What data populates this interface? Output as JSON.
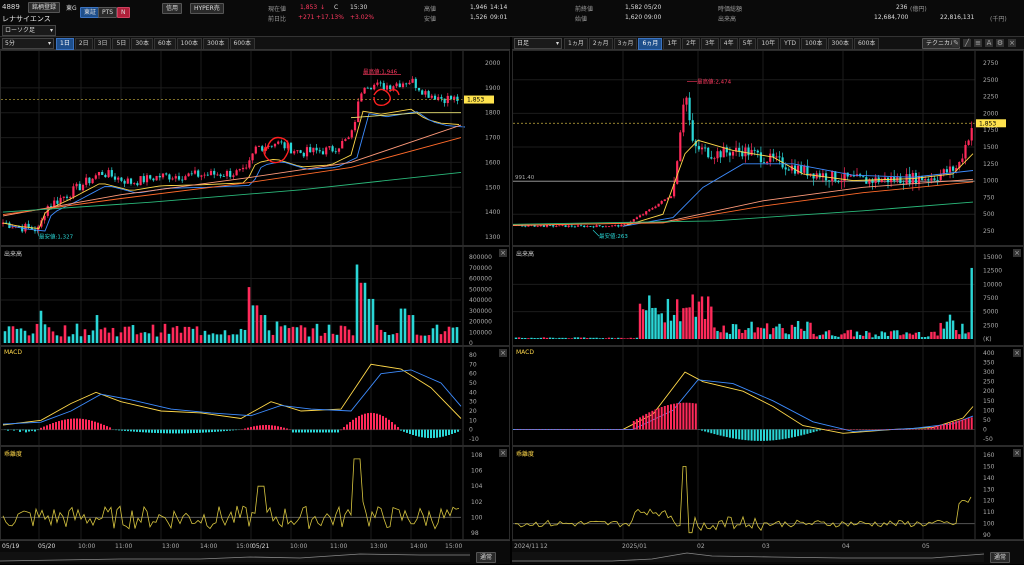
{
  "header": {
    "code": "4889",
    "brand_button": "銘柄登録",
    "market": "東G",
    "name": "レナサイエンス",
    "exch_tse": "東証",
    "exch_pts": "PTS",
    "n_badge": "N",
    "credit": "信用",
    "hyper": "HYPER売",
    "current_label": "現在値",
    "current_value": "1,853",
    "current_arrow": "↓",
    "c_mark": "C",
    "current_time": "15:30",
    "prev_label": "前日比",
    "prev_change": "+271",
    "prev_pct": "+17.13%",
    "prev_pct2": "+3.02%",
    "high_label": "高値",
    "high_value": "1,946",
    "high_time": "14:14",
    "low_label": "安値",
    "low_value": "1,526",
    "low_time": "09:01",
    "close_label": "前終値",
    "close_value": "1,582",
    "close_date": "05/20",
    "open_label": "始値",
    "open_value": "1,620",
    "open_time": "09:00",
    "mcap_label": "時価総額",
    "mcap_value": "236",
    "mcap_unit": "(億円)",
    "vol_label": "出来高",
    "vol_value": "12,684,700",
    "turnover_value": "22,816,131",
    "turnover_unit": "(千円)",
    "technical_button": "テクニカル"
  },
  "left": {
    "chart_type": "ローソク足",
    "interval": "5分",
    "ranges": [
      "1日",
      "2日",
      "3日",
      "5日",
      "30本",
      "60本",
      "100本",
      "300本",
      "600本"
    ],
    "active_range": 0,
    "price_tag": "1,853",
    "high_annot": "最高値:1,946",
    "low_annot": "最安値:1,327",
    "price_ticks": [
      "2000",
      "1900",
      "1800",
      "1700",
      "1600",
      "1500",
      "1400",
      "1300"
    ],
    "volume_title": "出来高",
    "volume_ticks": [
      "800000",
      "700000",
      "600000",
      "500000",
      "400000",
      "300000",
      "200000",
      "100000",
      "0"
    ],
    "macd_title": "MACD",
    "macd_ticks": [
      "80",
      "70",
      "60",
      "50",
      "40",
      "30",
      "20",
      "10",
      "0",
      "-10"
    ],
    "dev_title": "乖離度",
    "dev_ticks": [
      "108",
      "106",
      "104",
      "102",
      "100",
      "98"
    ],
    "time_labels": [
      "05/19",
      "05/20",
      "10:00",
      "11:00",
      "13:00",
      "14:00",
      "15:00",
      "05/21",
      "10:00",
      "11:00",
      "13:00",
      "14:00",
      "15:00"
    ],
    "nav_button": "通常"
  },
  "right": {
    "interval": "日足",
    "ranges": [
      "1ヵ月",
      "2ヵ月",
      "3ヵ月",
      "6ヵ月",
      "1年",
      "2年",
      "3年",
      "4年",
      "5年",
      "10年",
      "YTD",
      "100本",
      "300本",
      "600本"
    ],
    "active_range": 3,
    "price_tag": "1,853",
    "high_annot": "最高値:2,474",
    "low_annot": "最安値:263",
    "level_label": "991.40",
    "price_ticks": [
      "2750",
      "2500",
      "2250",
      "2000",
      "1750",
      "1500",
      "1250",
      "1000",
      "750",
      "500",
      "250"
    ],
    "volume_title": "出来高",
    "volume_ticks": [
      "15000",
      "12500",
      "10000",
      "7500",
      "5000",
      "2500",
      "(K)"
    ],
    "macd_title": "MACD",
    "macd_ticks": [
      "400",
      "350",
      "300",
      "250",
      "200",
      "150",
      "100",
      "50",
      "0",
      "-50"
    ],
    "dev_title": "乖離度",
    "dev_ticks": [
      "160",
      "150",
      "140",
      "130",
      "120",
      "110",
      "100",
      "90"
    ],
    "time_labels": [
      "2024/11",
      "12",
      "2025/01",
      "02",
      "03",
      "04",
      "05"
    ],
    "nav_button": "通常"
  },
  "colors": {
    "up": "#ff2a5a",
    "down": "#2ad6d6",
    "ma_short": "#ffd84a",
    "ma_mid": "#3d8cff",
    "ma_long1": "#ff9a7a",
    "ma_long2": "#ff6a2a",
    "ma_long3": "#2ab87a",
    "annot": "#ff3a60"
  }
}
